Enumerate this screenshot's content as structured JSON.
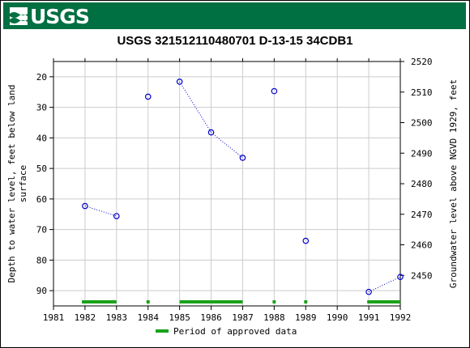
{
  "header": {
    "logo_text": "USGS",
    "brand_color": "#006f41"
  },
  "chart_data": {
    "type": "scatter",
    "title": "USGS 321512110480701 D-13-15 34CDB1",
    "ylabel_left": [
      "Depth to water level, feet below land",
      "surface"
    ],
    "ylabel_right": "Groundwater level above NGVD 1929, feet",
    "x_ticks": [
      "1981",
      "1982",
      "1983",
      "1984",
      "1985",
      "1986",
      "1987",
      "1988",
      "1989",
      "1990",
      "1991",
      "1992"
    ],
    "xlim": [
      1981,
      1992
    ],
    "ylim_left": [
      15,
      95
    ],
    "y_ticks_left": [
      "20",
      "30",
      "40",
      "50",
      "60",
      "70",
      "80",
      "90"
    ],
    "y_ticks_right": [
      "2520",
      "2510",
      "2500",
      "2490",
      "2480",
      "2470",
      "2460",
      "2450"
    ],
    "datum_offset": 2535,
    "grid": true,
    "marker_color": "#0000cc",
    "approved_color": "#19a319",
    "points": [
      {
        "x": 1982.0,
        "y": 62.3
      },
      {
        "x": 1983.0,
        "y": 65.6
      },
      {
        "x": 1984.0,
        "y": 26.5
      },
      {
        "x": 1985.0,
        "y": 21.6
      },
      {
        "x": 1986.0,
        "y": 38.2
      },
      {
        "x": 1987.0,
        "y": 46.5
      },
      {
        "x": 1988.0,
        "y": 24.7
      },
      {
        "x": 1989.0,
        "y": 73.7
      },
      {
        "x": 1991.0,
        "y": 90.4
      },
      {
        "x": 1992.0,
        "y": 85.5
      }
    ],
    "connected_segments": [
      [
        0,
        1
      ],
      [
        3,
        4
      ],
      [
        4,
        5
      ],
      [
        8,
        9
      ]
    ],
    "approved_periods": [
      [
        1981.9,
        1983.0
      ],
      [
        1983.95,
        1984.05
      ],
      [
        1985.0,
        1987.0
      ],
      [
        1987.95,
        1988.05
      ],
      [
        1988.95,
        1989.05
      ],
      [
        1990.95,
        1992.0
      ]
    ],
    "legend": {
      "label": "Period of approved data",
      "placement": "bottom-center"
    }
  }
}
